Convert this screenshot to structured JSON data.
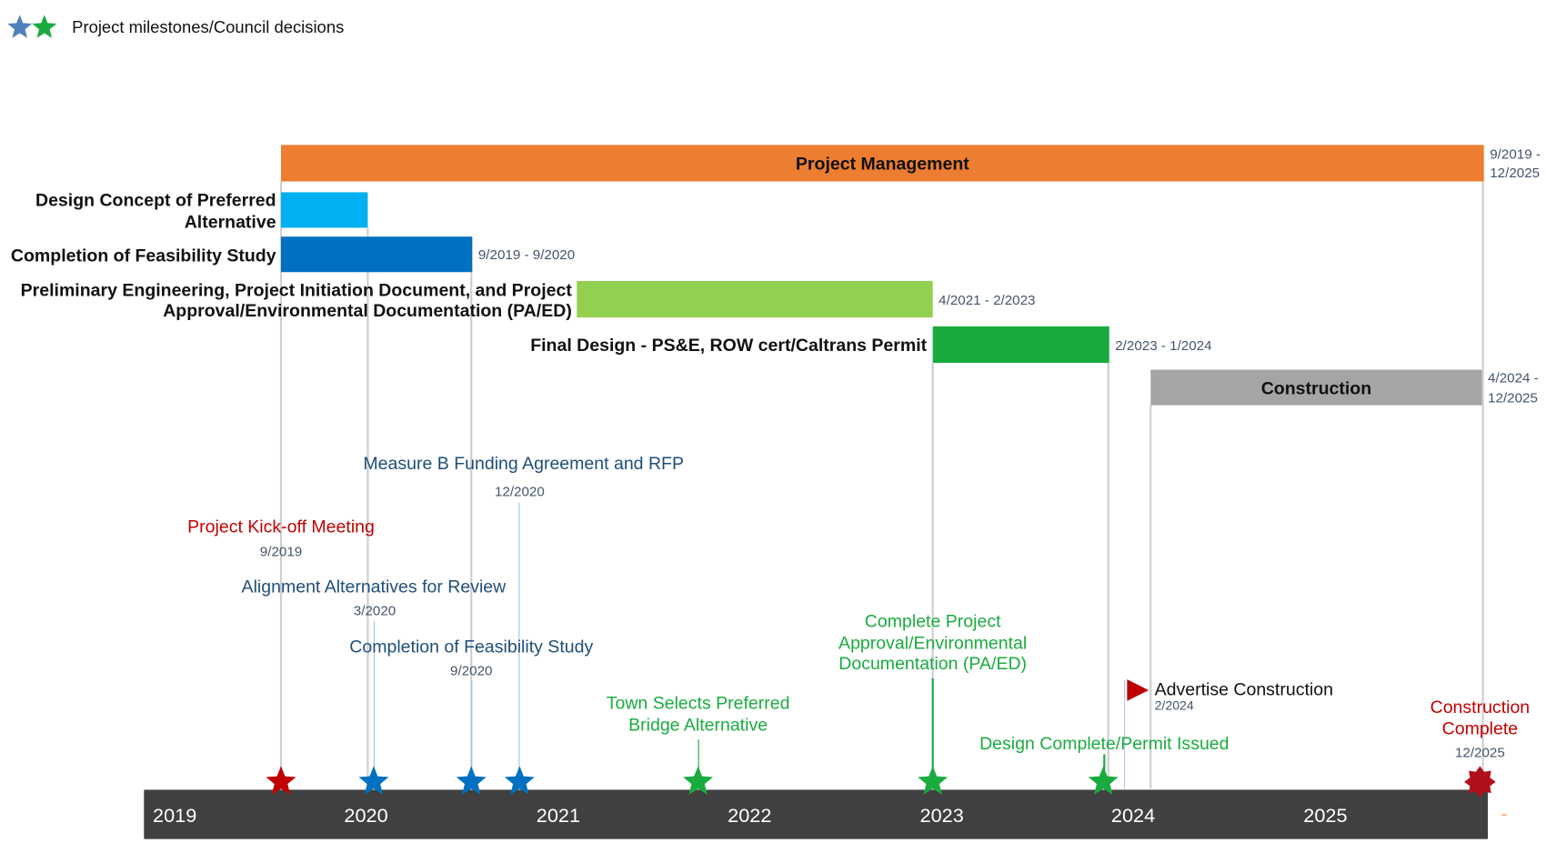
{
  "legend": {
    "label": "Project milestones/Council decisions",
    "colors": [
      "#4F81BD",
      "#1AAB40"
    ],
    "icon": "star-icon"
  },
  "timeline": {
    "years": [
      "2019",
      "2020",
      "2021",
      "2022",
      "2023",
      "2024",
      "2025"
    ],
    "bar_color": "#404040"
  },
  "tasks": [
    {
      "label": "Project Management",
      "dates_line1": "9/2019 -",
      "dates_line2": "12/2025",
      "color": "#ED7D31"
    },
    {
      "label_line1": "Design Concept of Preferred",
      "label_line2": "Alternative",
      "color": "#00B0F0"
    },
    {
      "label": "Completion of Feasibility Study",
      "dates": "9/2019 - 9/2020",
      "color": "#0070C0"
    },
    {
      "label_line1": "Preliminary Engineering, Project Initiation Document, and Project",
      "label_line2": "Approval/Environmental Documentation (PA/ED)",
      "dates": "4/2021 - 2/2023",
      "color": "#92D050"
    },
    {
      "label": "Final Design - PS&E, ROW cert/Caltrans Permit",
      "dates": "2/2023 - 1/2024",
      "color": "#1AAB40"
    },
    {
      "label": "Construction",
      "dates_line1": "4/2024 -",
      "dates_line2": "12/2025",
      "color": "#A5A5A5"
    }
  ],
  "milestones": [
    {
      "label": "Project Kick-off Meeting",
      "date": "9/2019",
      "color": "#C00000"
    },
    {
      "label": "Measure B Funding Agreement and RFP",
      "date": "12/2020",
      "color": "#1F4E79"
    },
    {
      "label": "Alignment Alternatives for Review",
      "date": "3/2020",
      "color": "#1F4E79"
    },
    {
      "label": "Completion of Feasibility Study",
      "date": "9/2020",
      "color": "#1F4E79"
    },
    {
      "label_line1": "Town Selects Preferred",
      "label_line2": "Bridge Alternative",
      "color": "#1AAB40"
    },
    {
      "label_line1": "Complete Project",
      "label_line2": "Approval/Environmental",
      "label_line3": "Documentation (PA/ED)",
      "color": "#1AAB40"
    },
    {
      "label": "Design Complete/Permit Issued",
      "color": "#1AAB40"
    },
    {
      "label": "Advertise Construction",
      "date": "2/2024",
      "color": "#C00000",
      "icon": "flag-icon"
    },
    {
      "label_line1": "Construction",
      "label_line2": "Complete",
      "date": "12/2025",
      "color": "#C00000",
      "icon": "burst-icon"
    }
  ]
}
